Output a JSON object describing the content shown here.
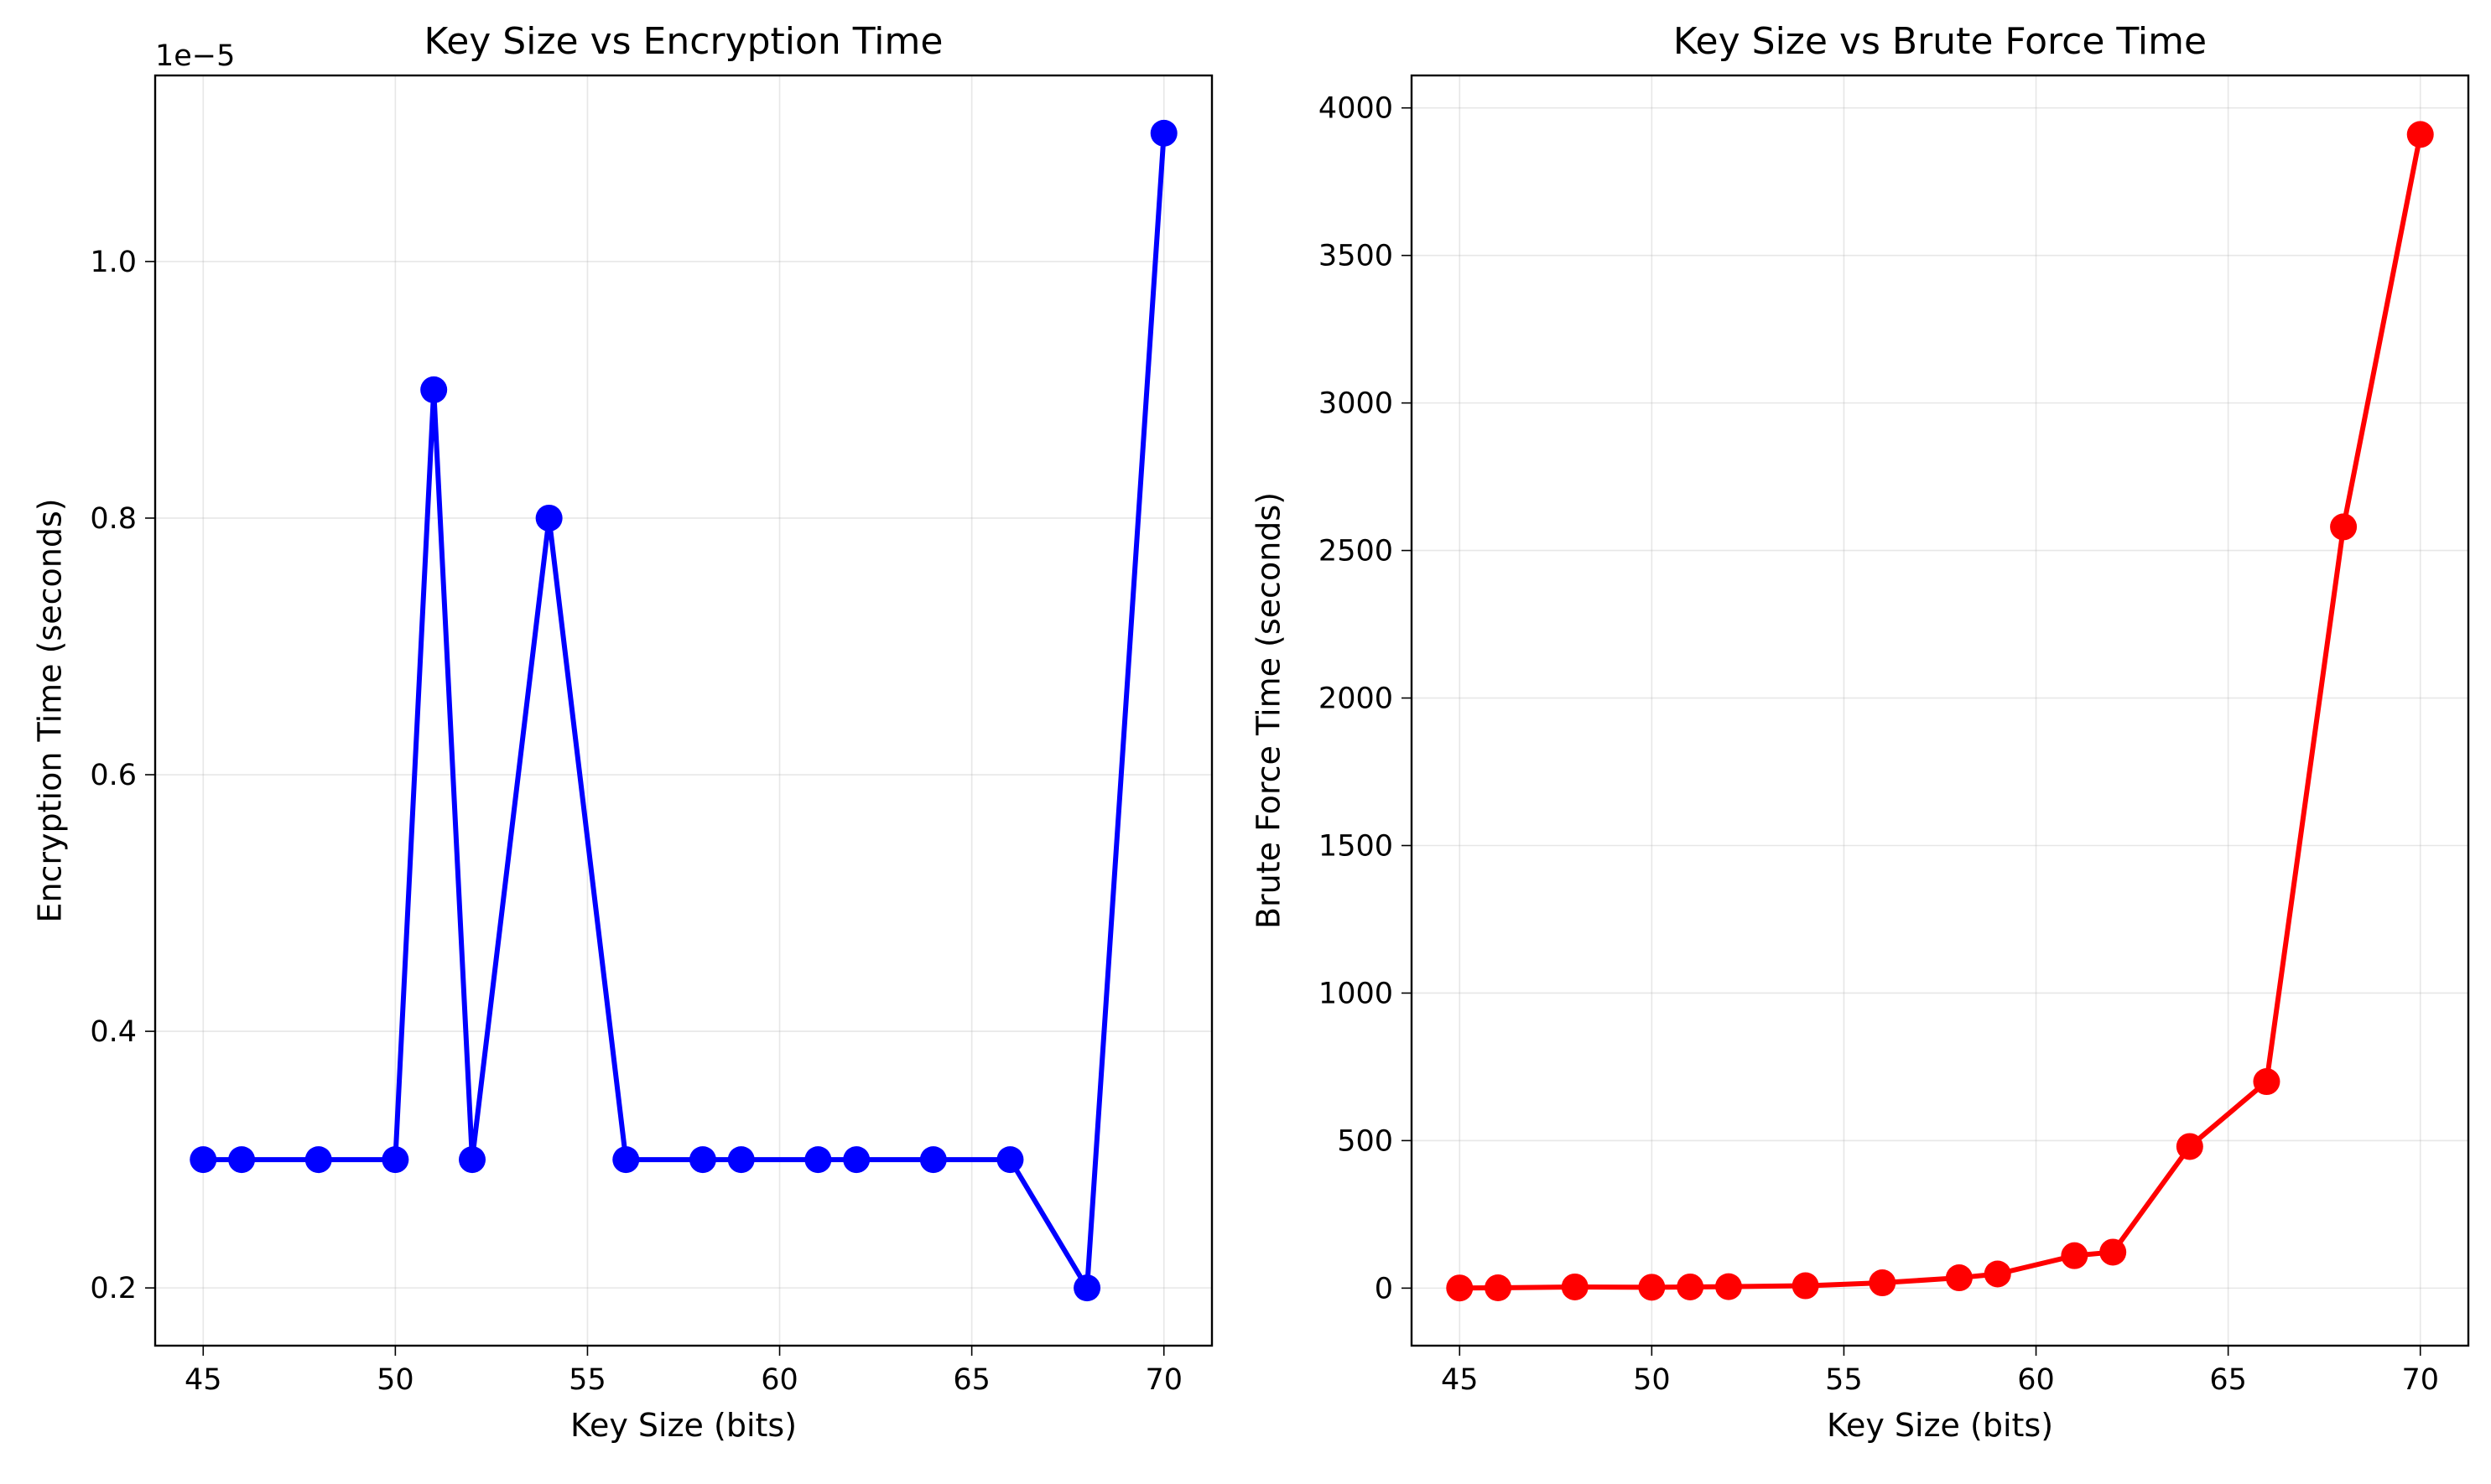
{
  "chart_data": [
    {
      "type": "line",
      "title": "Key Size vs Encryption Time",
      "xlabel": "Key Size (bits)",
      "ylabel": "Encryption Time (seconds)",
      "y_offset_text": "1e−5",
      "x_ticks": [
        45,
        50,
        55,
        60,
        65,
        70
      ],
      "x_tick_labels": [
        "45",
        "50",
        "55",
        "60",
        "65",
        "70"
      ],
      "y_ticks": [
        2e-06,
        4e-06,
        6e-06,
        8e-06,
        1e-05
      ],
      "y_tick_labels": [
        "0.2",
        "0.4",
        "0.6",
        "0.8",
        "1.0"
      ],
      "xlim": [
        43.75,
        71.25
      ],
      "ylim": [
        1.55e-06,
        1.145e-05
      ],
      "grid": true,
      "color": "#0000ff",
      "marker": "circle",
      "series": [
        {
          "x": [
            45,
            46,
            48,
            50,
            51,
            52,
            54,
            56,
            58,
            59,
            61,
            62,
            64,
            66,
            68,
            70
          ],
          "y": [
            3e-06,
            3e-06,
            3e-06,
            3e-06,
            9e-06,
            3e-06,
            8e-06,
            3e-06,
            3e-06,
            3e-06,
            3e-06,
            3e-06,
            3e-06,
            3e-06,
            2e-06,
            1.1e-05
          ]
        }
      ]
    },
    {
      "type": "line",
      "title": "Key Size vs Brute Force Time",
      "xlabel": "Key Size (bits)",
      "ylabel": "Brute Force Time (seconds)",
      "x_ticks": [
        45,
        50,
        55,
        60,
        65,
        70
      ],
      "x_tick_labels": [
        "45",
        "50",
        "55",
        "60",
        "65",
        "70"
      ],
      "y_ticks": [
        0,
        500,
        1000,
        1500,
        2000,
        2500,
        3000,
        3500,
        4000
      ],
      "y_tick_labels": [
        "0",
        "500",
        "1000",
        "1500",
        "2000",
        "2500",
        "3000",
        "3500",
        "4000"
      ],
      "xlim": [
        43.75,
        71.25
      ],
      "ylim": [
        -195,
        4110
      ],
      "grid": true,
      "color": "#ff0000",
      "marker": "circle",
      "series": [
        {
          "x": [
            45,
            46,
            48,
            50,
            51,
            52,
            54,
            56,
            58,
            59,
            61,
            62,
            64,
            66,
            68,
            70
          ],
          "y": [
            0.5,
            1,
            4,
            3,
            4,
            5,
            8,
            18,
            35,
            48,
            110,
            122,
            480,
            700,
            2580,
            3910
          ]
        }
      ]
    }
  ]
}
